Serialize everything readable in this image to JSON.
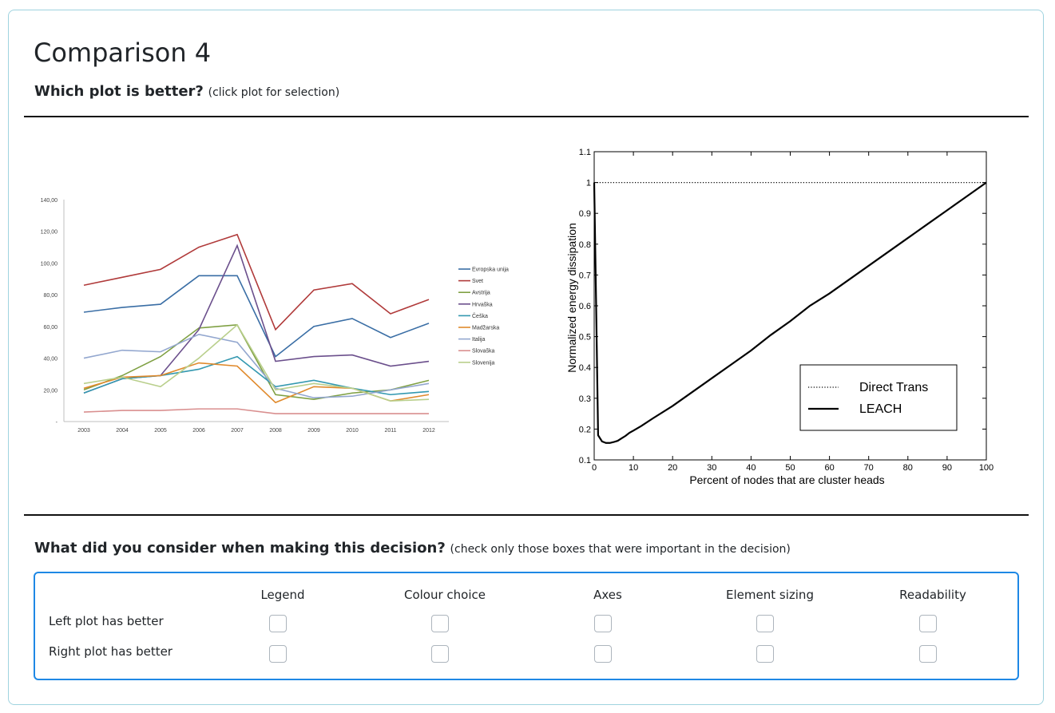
{
  "page": {
    "title": "Comparison 4",
    "question": "Which plot is better?",
    "question_hint": "(click plot for selection)",
    "consider_question": "What did you consider when making this decision?",
    "consider_hint": "(check only those boxes that were important in the decision)"
  },
  "criteria": {
    "columns": [
      "Legend",
      "Colour choice",
      "Axes",
      "Element sizing",
      "Readability"
    ],
    "rows": [
      "Left plot has better",
      "Right plot has better"
    ]
  },
  "colors": {
    "accent": "#1e88e5",
    "card_border": "#9fd3df"
  },
  "chart_data": [
    {
      "type": "line",
      "title": "",
      "xlabel": "",
      "ylabel": "",
      "x": [
        "2003",
        "2004",
        "2005",
        "2006",
        "2007",
        "2008",
        "2009",
        "2010",
        "2011",
        "2012"
      ],
      "ylim": [
        0,
        140
      ],
      "yticks": [
        "-",
        "20,00",
        "40,00",
        "60,00",
        "80,00",
        "100,00",
        "120,00",
        "140,00"
      ],
      "legend_position": "right",
      "series": [
        {
          "name": "Evropska unija",
          "color": "#3a6ea5",
          "values": [
            69,
            72,
            74,
            92,
            92,
            41,
            60,
            65,
            53,
            62
          ]
        },
        {
          "name": "Svet",
          "color": "#b03a3a",
          "values": [
            86,
            91,
            96,
            110,
            118,
            58,
            83,
            87,
            68,
            77
          ]
        },
        {
          "name": "Avstrija",
          "color": "#7fa043",
          "values": [
            20,
            29,
            41,
            59,
            61,
            17,
            14,
            18,
            20,
            26
          ]
        },
        {
          "name": "Hrvaška",
          "color": "#6b4f8c",
          "values": [
            18,
            27,
            29,
            58,
            111,
            38,
            41,
            42,
            35,
            38
          ]
        },
        {
          "name": "Češka",
          "color": "#3398b0",
          "values": [
            18,
            27,
            29,
            33,
            41,
            22,
            26,
            21,
            17,
            19
          ]
        },
        {
          "name": "Madžarska",
          "color": "#e08a2c",
          "values": [
            21,
            28,
            29,
            37,
            35,
            12,
            22,
            21,
            13,
            17
          ]
        },
        {
          "name": "Italija",
          "color": "#93a7cf",
          "values": [
            40,
            45,
            44,
            55,
            50,
            21,
            15,
            16,
            20,
            24
          ]
        },
        {
          "name": "Slovaška",
          "color": "#d98f8f",
          "values": [
            6,
            7,
            7,
            8,
            8,
            5,
            5,
            5,
            5,
            5
          ]
        },
        {
          "name": "Slovenija",
          "color": "#b9cf8c",
          "values": [
            24,
            28,
            22,
            40,
            61,
            20,
            24,
            21,
            13,
            14
          ]
        }
      ]
    },
    {
      "type": "line",
      "title": "",
      "xlabel": "Percent of nodes that are cluster heads",
      "ylabel": "Normalized energy dissipation",
      "xlim": [
        0,
        100
      ],
      "ylim": [
        0.1,
        1.1
      ],
      "xticks": [
        0,
        10,
        20,
        30,
        40,
        50,
        60,
        70,
        80,
        90,
        100
      ],
      "yticks": [
        0.1,
        0.2,
        0.3,
        0.4,
        0.5,
        0.6,
        0.7,
        0.8,
        0.9,
        1,
        1.1
      ],
      "legend_position": "bottom-right",
      "series": [
        {
          "name": "Direct Trans",
          "style": "dotted",
          "x": [
            0,
            100
          ],
          "y": [
            1,
            1
          ]
        },
        {
          "name": "LEACH",
          "style": "solid",
          "x": [
            0,
            0.5,
            1,
            2,
            3,
            4,
            5,
            6,
            7,
            8,
            9,
            10,
            12,
            15,
            20,
            25,
            30,
            35,
            40,
            45,
            50,
            55,
            60,
            65,
            70,
            75,
            80,
            85,
            90,
            95,
            100
          ],
          "y": [
            1,
            0.6,
            0.18,
            0.16,
            0.155,
            0.155,
            0.158,
            0.162,
            0.17,
            0.178,
            0.188,
            0.195,
            0.21,
            0.235,
            0.275,
            0.32,
            0.365,
            0.41,
            0.455,
            0.505,
            0.55,
            0.6,
            0.64,
            0.685,
            0.73,
            0.775,
            0.82,
            0.865,
            0.91,
            0.955,
            1.0
          ]
        }
      ]
    }
  ]
}
